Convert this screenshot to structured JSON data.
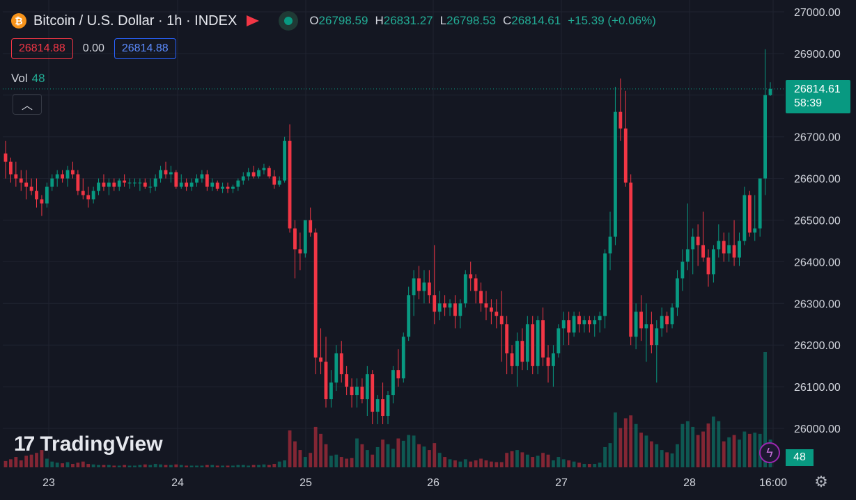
{
  "header": {
    "symbol_icon": "₿",
    "title": "Bitcoin / U.S. Dollar · 1h · INDEX",
    "ohlc": {
      "o_label": "O",
      "o": "26798.59",
      "h_label": "H",
      "h": "26831.27",
      "l_label": "L",
      "l": "26798.53",
      "c_label": "C",
      "c": "26814.61",
      "change": "+15.39 (+0.06%)"
    }
  },
  "pills": {
    "sell": "26814.88",
    "spread": "0.00",
    "buy": "26814.88"
  },
  "volume": {
    "label": "Vol",
    "value": "48"
  },
  "last_price": {
    "price": "26814.61",
    "countdown": "58:39"
  },
  "volume_tag": "48",
  "logo": {
    "mark": "17",
    "text": "TradingView"
  },
  "icons": {
    "collapse": "chevron-up-icon",
    "bolt": "lightning-icon",
    "settings": "gear-icon"
  },
  "colors": {
    "up": "#089981",
    "down": "#f23645",
    "background": "#141722"
  },
  "chart_data": {
    "type": "candlestick",
    "interval": "1h",
    "ylim": [
      25930,
      27000
    ],
    "y_ticks": [
      "26000.00",
      "26100.00",
      "26200.00",
      "26300.00",
      "26400.00",
      "26500.00",
      "26600.00",
      "26700.00",
      "26800.00",
      "26900.00",
      "27000.00"
    ],
    "x_ticks": [
      "23",
      "24",
      "25",
      "26",
      "27",
      "28",
      "16:00"
    ],
    "candles": [
      [
        26660,
        26690,
        26600,
        26640,
        11
      ],
      [
        26640,
        26650,
        26590,
        26610,
        14
      ],
      [
        26610,
        26640,
        26580,
        26600,
        18
      ],
      [
        26600,
        26620,
        26570,
        26590,
        12
      ],
      [
        26590,
        26620,
        26550,
        26580,
        20
      ],
      [
        26580,
        26600,
        26560,
        26570,
        22
      ],
      [
        26570,
        26600,
        26530,
        26550,
        25
      ],
      [
        26550,
        26560,
        26510,
        26540,
        30
      ],
      [
        26540,
        26590,
        26530,
        26580,
        15
      ],
      [
        26580,
        26610,
        26570,
        26600,
        10
      ],
      [
        26600,
        26620,
        26580,
        26610,
        8
      ],
      [
        26610,
        26620,
        26590,
        26600,
        7
      ],
      [
        26600,
        26630,
        26580,
        26620,
        9
      ],
      [
        26620,
        26640,
        26600,
        26610,
        6
      ],
      [
        26610,
        26620,
        26560,
        26570,
        8
      ],
      [
        26570,
        26600,
        26550,
        26560,
        10
      ],
      [
        26560,
        26580,
        26530,
        26550,
        6
      ],
      [
        26550,
        26580,
        26540,
        26570,
        5
      ],
      [
        26570,
        26600,
        26560,
        26590,
        4
      ],
      [
        26590,
        26610,
        26570,
        26580,
        4
      ],
      [
        26580,
        26600,
        26560,
        26590,
        4
      ],
      [
        26590,
        26600,
        26570,
        26580,
        3
      ],
      [
        26580,
        26600,
        26570,
        26595,
        3
      ],
      [
        26595,
        26610,
        26580,
        26590,
        4
      ],
      [
        26590,
        26600,
        26575,
        26590,
        3
      ],
      [
        26590,
        26600,
        26580,
        26590,
        3
      ],
      [
        26590,
        26600,
        26570,
        26590,
        4
      ],
      [
        26590,
        26600,
        26575,
        26580,
        5
      ],
      [
        26580,
        26600,
        26565,
        26580,
        4
      ],
      [
        26580,
        26610,
        26570,
        26600,
        6
      ],
      [
        26600,
        26630,
        26590,
        26620,
        5
      ],
      [
        26620,
        26640,
        26600,
        26610,
        4
      ],
      [
        26610,
        26630,
        26590,
        26615,
        4
      ],
      [
        26615,
        26620,
        26575,
        26580,
        5
      ],
      [
        26580,
        26610,
        26575,
        26590,
        4
      ],
      [
        26590,
        26600,
        26570,
        26580,
        3
      ],
      [
        26580,
        26600,
        26570,
        26590,
        3
      ],
      [
        26590,
        26610,
        26580,
        26600,
        3
      ],
      [
        26600,
        26620,
        26590,
        26610,
        3
      ],
      [
        26610,
        26620,
        26570,
        26580,
        4
      ],
      [
        26580,
        26600,
        26570,
        26590,
        4
      ],
      [
        26590,
        26595,
        26570,
        26575,
        3
      ],
      [
        26575,
        26590,
        26565,
        26580,
        3
      ],
      [
        26580,
        26590,
        26565,
        26575,
        3
      ],
      [
        26575,
        26585,
        26565,
        26580,
        3
      ],
      [
        26580,
        26600,
        26570,
        26595,
        4
      ],
      [
        26595,
        26615,
        26585,
        26605,
        4
      ],
      [
        26605,
        26625,
        26595,
        26615,
        3
      ],
      [
        26615,
        26630,
        26600,
        26605,
        4
      ],
      [
        26605,
        26625,
        26600,
        26620,
        4
      ],
      [
        26620,
        26635,
        26610,
        26625,
        5
      ],
      [
        26625,
        26630,
        26600,
        26605,
        4
      ],
      [
        26605,
        26620,
        26575,
        26585,
        6
      ],
      [
        26585,
        26605,
        26580,
        26595,
        10
      ],
      [
        26595,
        26700,
        26590,
        26690,
        12
      ],
      [
        26690,
        26730,
        26470,
        26480,
        64
      ],
      [
        26480,
        26500,
        26360,
        26430,
        45
      ],
      [
        26430,
        26470,
        26380,
        26420,
        30
      ],
      [
        26420,
        26500,
        26410,
        26500,
        18
      ],
      [
        26500,
        26530,
        26460,
        26470,
        25
      ],
      [
        26470,
        26480,
        26130,
        26170,
        70
      ],
      [
        26170,
        26240,
        26130,
        26160,
        58
      ],
      [
        26160,
        26220,
        26050,
        26070,
        40
      ],
      [
        26070,
        26140,
        26050,
        26110,
        20
      ],
      [
        26110,
        26200,
        26090,
        26180,
        22
      ],
      [
        26180,
        26210,
        26110,
        26130,
        18
      ],
      [
        26130,
        26150,
        26080,
        26100,
        15
      ],
      [
        26100,
        26120,
        26050,
        26080,
        16
      ],
      [
        26080,
        26120,
        26050,
        26100,
        50
      ],
      [
        26100,
        26120,
        26060,
        26070,
        40
      ],
      [
        26070,
        26150,
        26030,
        26130,
        30
      ],
      [
        26130,
        26140,
        26010,
        26040,
        22
      ],
      [
        26040,
        26080,
        26010,
        26070,
        35
      ],
      [
        26070,
        26110,
        26010,
        26030,
        48
      ],
      [
        26030,
        26090,
        26010,
        26080,
        40
      ],
      [
        26080,
        26150,
        26060,
        26140,
        32
      ],
      [
        26140,
        26190,
        26100,
        26120,
        50
      ],
      [
        26120,
        26230,
        26110,
        26220,
        46
      ],
      [
        26220,
        26340,
        26210,
        26320,
        56
      ],
      [
        26320,
        26380,
        26270,
        26360,
        55
      ],
      [
        26360,
        26390,
        26310,
        26330,
        40
      ],
      [
        26330,
        26380,
        26300,
        26350,
        36
      ],
      [
        26350,
        26380,
        26300,
        26320,
        30
      ],
      [
        26320,
        26440,
        26250,
        26280,
        42
      ],
      [
        26280,
        26330,
        26260,
        26300,
        25
      ],
      [
        26300,
        26320,
        26270,
        26290,
        18
      ],
      [
        26290,
        26310,
        26270,
        26300,
        14
      ],
      [
        26300,
        26320,
        26240,
        26270,
        12
      ],
      [
        26270,
        26310,
        26240,
        26300,
        10
      ],
      [
        26300,
        26380,
        26290,
        26370,
        14
      ],
      [
        26370,
        26400,
        26330,
        26360,
        10
      ],
      [
        26360,
        26370,
        26300,
        26330,
        12
      ],
      [
        26330,
        26350,
        26280,
        26300,
        15
      ],
      [
        26300,
        26330,
        26260,
        26290,
        12
      ],
      [
        26290,
        26310,
        26250,
        26280,
        10
      ],
      [
        26280,
        26310,
        26240,
        26270,
        9
      ],
      [
        26270,
        26330,
        26160,
        26250,
        9
      ],
      [
        26250,
        26270,
        26130,
        26180,
        25
      ],
      [
        26180,
        26200,
        26130,
        26150,
        28
      ],
      [
        26150,
        26230,
        26100,
        26210,
        30
      ],
      [
        26210,
        26240,
        26140,
        26160,
        26
      ],
      [
        26160,
        26270,
        26140,
        26250,
        22
      ],
      [
        26250,
        26270,
        26130,
        26150,
        18
      ],
      [
        26150,
        26270,
        26130,
        26260,
        20
      ],
      [
        26260,
        26290,
        26150,
        26170,
        25
      ],
      [
        26170,
        26200,
        26110,
        26150,
        22
      ],
      [
        26150,
        26200,
        26100,
        26180,
        12
      ],
      [
        26180,
        26250,
        26170,
        26240,
        18
      ],
      [
        26240,
        26280,
        26200,
        26260,
        14
      ],
      [
        26260,
        26280,
        26200,
        26230,
        12
      ],
      [
        26230,
        26280,
        26220,
        26270,
        10
      ],
      [
        26270,
        26280,
        26230,
        26250,
        8
      ],
      [
        26250,
        26270,
        26230,
        26260,
        6
      ],
      [
        26260,
        26270,
        26230,
        26250,
        6
      ],
      [
        26250,
        26270,
        26220,
        26260,
        6
      ],
      [
        26260,
        26280,
        26230,
        26270,
        8
      ],
      [
        26270,
        26430,
        26240,
        26420,
        35
      ],
      [
        26420,
        26520,
        26380,
        26460,
        42
      ],
      [
        26460,
        26820,
        26440,
        26760,
        95
      ],
      [
        26760,
        26840,
        26690,
        26720,
        68
      ],
      [
        26720,
        26810,
        26580,
        26590,
        85
      ],
      [
        26590,
        26610,
        26200,
        26220,
        90
      ],
      [
        26220,
        26300,
        26190,
        26280,
        75
      ],
      [
        26280,
        26320,
        26210,
        26240,
        60
      ],
      [
        26240,
        26300,
        26160,
        26250,
        55
      ],
      [
        26250,
        26280,
        26180,
        26200,
        45
      ],
      [
        26200,
        26260,
        26110,
        26240,
        40
      ],
      [
        26240,
        26290,
        26220,
        26270,
        30
      ],
      [
        26270,
        26280,
        26230,
        26250,
        26
      ],
      [
        26250,
        26300,
        26240,
        26290,
        24
      ],
      [
        26290,
        26380,
        26270,
        26360,
        40
      ],
      [
        26360,
        26430,
        26330,
        26400,
        75
      ],
      [
        26400,
        26540,
        26380,
        26430,
        80
      ],
      [
        26430,
        26480,
        26370,
        26460,
        70
      ],
      [
        26460,
        26490,
        26390,
        26440,
        56
      ],
      [
        26440,
        26520,
        26400,
        26410,
        62
      ],
      [
        26410,
        26430,
        26340,
        26370,
        76
      ],
      [
        26370,
        26440,
        26350,
        26430,
        88
      ],
      [
        26430,
        26490,
        26410,
        26450,
        80
      ],
      [
        26450,
        26470,
        26400,
        26420,
        45
      ],
      [
        26420,
        26470,
        26400,
        26440,
        52
      ],
      [
        26440,
        26500,
        26390,
        26410,
        56
      ],
      [
        26410,
        26470,
        26390,
        26450,
        48
      ],
      [
        26450,
        26580,
        26440,
        26560,
        62
      ],
      [
        26560,
        26570,
        26460,
        26470,
        58
      ],
      [
        26470,
        26560,
        26450,
        26480,
        60
      ],
      [
        26480,
        26590,
        26460,
        26600,
        58
      ],
      [
        26600,
        26910,
        26560,
        26800,
        200
      ],
      [
        26800,
        26831,
        26798,
        26815,
        48
      ]
    ]
  }
}
